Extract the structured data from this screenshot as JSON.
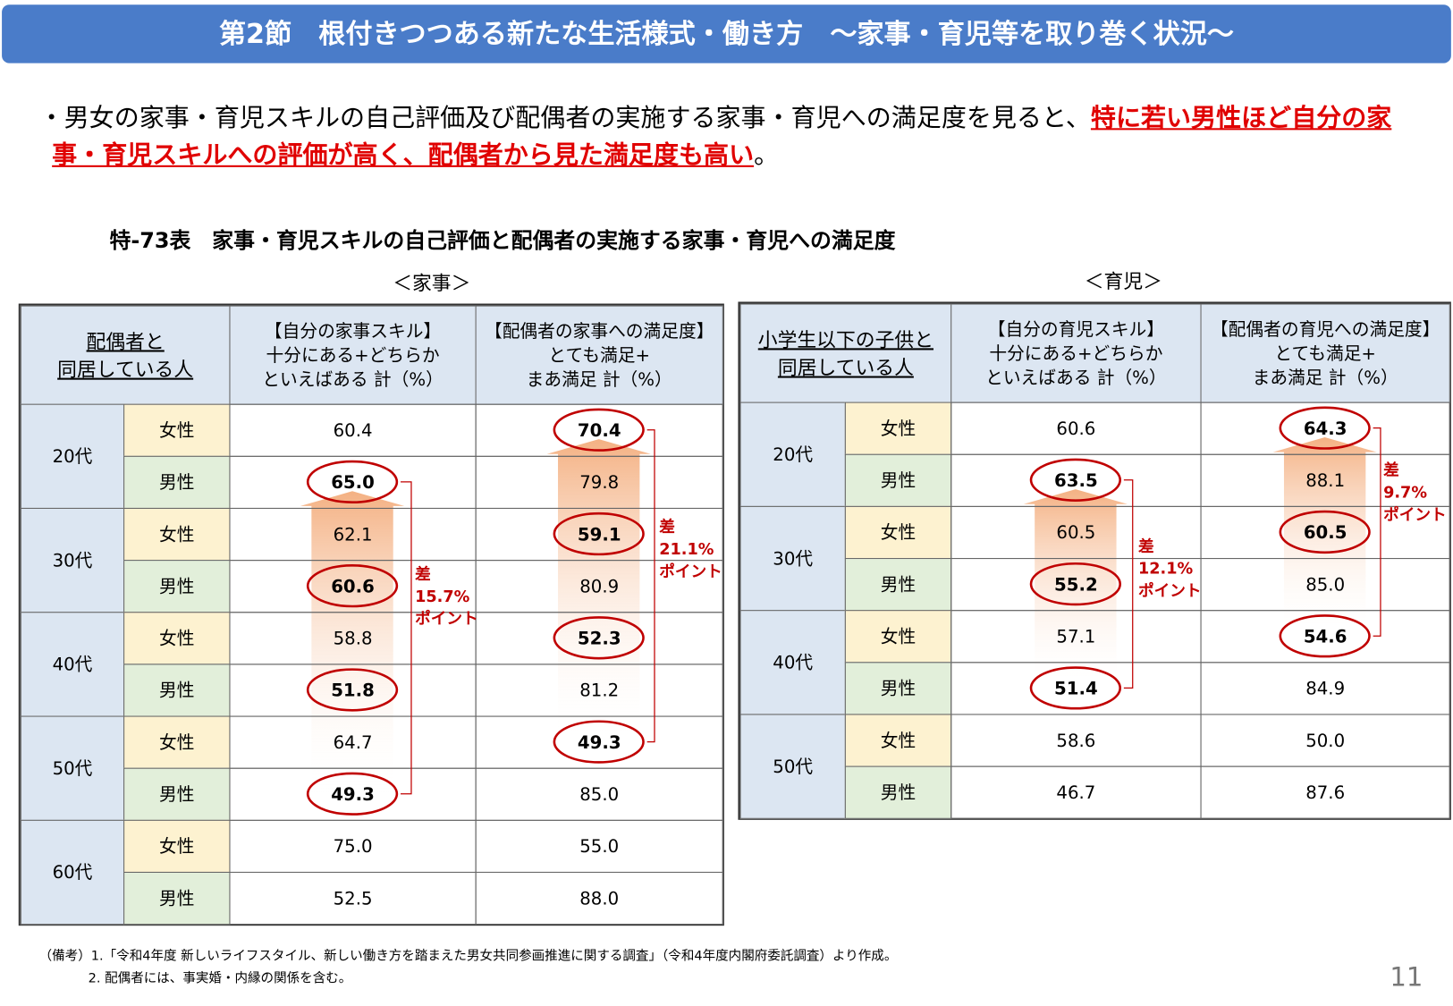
{
  "header": {
    "title": "第2節　根付きつつある新たな生活様式・働き方　～家事・育児等を取り巻く状況～"
  },
  "summary": {
    "lead": "・男女の家事・育児スキルの自己評価及び配偶者の実施する家事・育児への満足度を見ると、",
    "highlight": "特に若い男性ほど自分の家事・育児スキルへの評価が高く、配偶者から見た満足度も高い",
    "end": "。"
  },
  "table_title": "特-73表　家事・育児スキルの自己評価と配偶者の実施する家事・育児への満足度",
  "tables": [
    {
      "caption": "＜家事＞",
      "headers": [
        "配偶者と\n同居している人",
        "【自分の家事スキル】\n十分にある+どちらか\nといえばある 計（%）",
        "【配偶者の家事への満足度】\nとても満足+\nまあ満足 計（%）"
      ],
      "groups": [
        {
          "age": "20代",
          "rows": [
            [
              "女性",
              "60.4",
              "70.4"
            ],
            [
              "男性",
              "65.0",
              "79.8"
            ]
          ]
        },
        {
          "age": "30代",
          "rows": [
            [
              "女性",
              "62.1",
              "59.1"
            ],
            [
              "男性",
              "60.6",
              "80.9"
            ]
          ]
        },
        {
          "age": "40代",
          "rows": [
            [
              "女性",
              "58.8",
              "52.3"
            ],
            [
              "男性",
              "51.8",
              "81.2"
            ]
          ]
        },
        {
          "age": "50代",
          "rows": [
            [
              "女性",
              "64.7",
              "49.3"
            ],
            [
              "男性",
              "49.3",
              "85.0"
            ]
          ]
        },
        {
          "age": "60代",
          "rows": [
            [
              "女性",
              "75.0",
              "55.0"
            ],
            [
              "男性",
              "52.5",
              "88.0"
            ]
          ]
        }
      ],
      "notes": [
        "差\n15.7%\nポイント",
        "差\n21.1%\nポイント"
      ]
    },
    {
      "caption": "＜育児＞",
      "headers": [
        "小学生以下の子供と\n同居している人",
        "【自分の育児スキル】\n十分にある+どちらか\nといえばある 計（%）",
        "【配偶者の育児への満足度】\nとても満足+\nまあ満足 計（%）"
      ],
      "groups": [
        {
          "age": "20代",
          "rows": [
            [
              "女性",
              "60.6",
              "64.3"
            ],
            [
              "男性",
              "63.5",
              "88.1"
            ]
          ]
        },
        {
          "age": "30代",
          "rows": [
            [
              "女性",
              "60.5",
              "60.5"
            ],
            [
              "男性",
              "55.2",
              "85.0"
            ]
          ]
        },
        {
          "age": "40代",
          "rows": [
            [
              "女性",
              "57.1",
              "54.6"
            ],
            [
              "男性",
              "51.4",
              "84.9"
            ]
          ]
        },
        {
          "age": "50代",
          "rows": [
            [
              "女性",
              "58.6",
              "50.0"
            ],
            [
              "男性",
              "46.7",
              "87.6"
            ]
          ]
        }
      ],
      "notes": [
        "差\n12.1%\nポイント",
        "差\n9.7%\nポイント"
      ]
    }
  ],
  "footnotes": [
    "（備考）1.「令和4年度 新しいライフスタイル、新しい働き方を踏まえた男女共同参画推進に関する調査」（令和4年度内閣府委託調査）より作成。",
    "2. 配偶者には、事実婚・内縁の関係を含む。"
  ],
  "page_number": "11"
}
